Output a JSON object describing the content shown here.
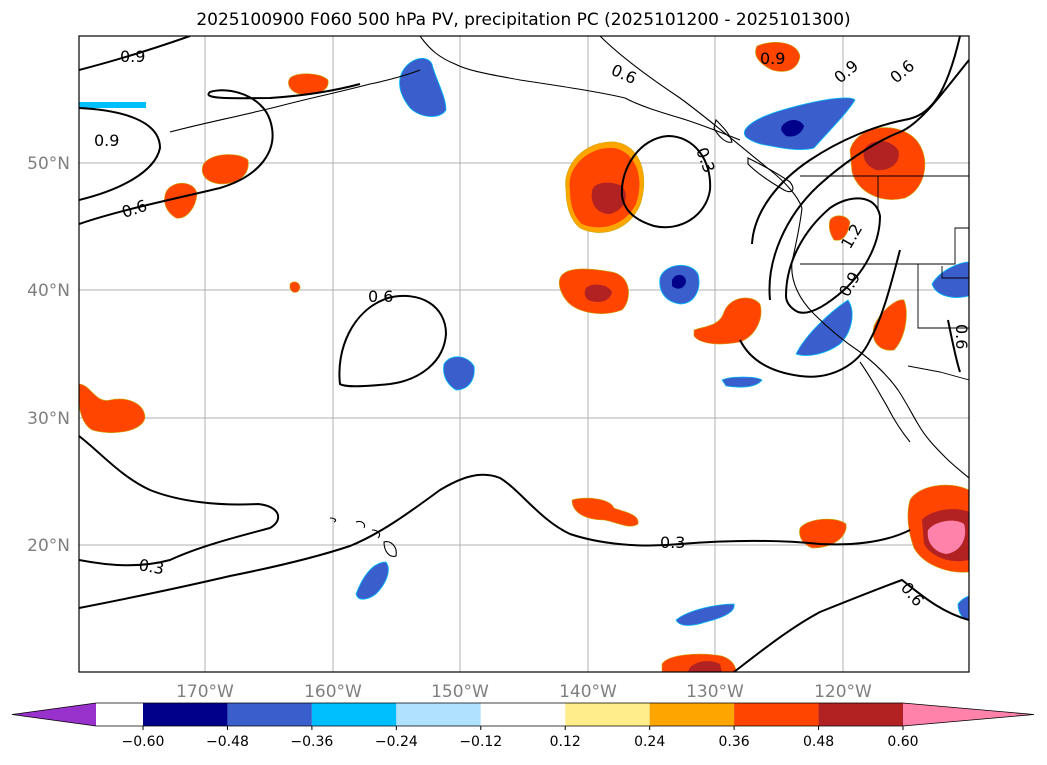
{
  "title": "2025100900 F060 500 hPa PV, precipitation PC (2025101200 - 2025101300)",
  "lat_labels": [
    "20°N",
    "30°N",
    "40°N",
    "50°N"
  ],
  "lon_labels": [
    "170°W",
    "160°W",
    "150°W",
    "140°W",
    "130°W",
    "120°W"
  ],
  "contour_labels": [
    {
      "id": "c1",
      "text": "0.9"
    },
    {
      "id": "c2",
      "text": "0.9"
    },
    {
      "id": "c3",
      "text": "0.6"
    },
    {
      "id": "c4",
      "text": "0.6"
    },
    {
      "id": "c5",
      "text": "0.3"
    },
    {
      "id": "c6",
      "text": "0.3"
    },
    {
      "id": "c7",
      "text": "0.3"
    },
    {
      "id": "c8",
      "text": "0.6"
    },
    {
      "id": "c9",
      "text": "0.9"
    },
    {
      "id": "c10",
      "text": "0.9"
    },
    {
      "id": "c11",
      "text": "0.6"
    },
    {
      "id": "c12",
      "text": "1.2"
    },
    {
      "id": "c13",
      "text": "0.9"
    },
    {
      "id": "c14",
      "text": "0.6"
    },
    {
      "id": "c15",
      "text": "0.6"
    }
  ],
  "colorbar": {
    "ticks": [
      "−0.60",
      "−0.48",
      "−0.36",
      "−0.24",
      "−0.12",
      "0.12",
      "0.24",
      "0.36",
      "0.48",
      "0.60"
    ],
    "colors": [
      "#9932cc",
      "#00008b",
      "#3a5fcd",
      "#00bfff",
      "#b0e2ff",
      "#ffffff",
      "#ffec8b",
      "#ffa500",
      "#ff4500",
      "#b22222",
      "#ff82ab"
    ]
  }
}
